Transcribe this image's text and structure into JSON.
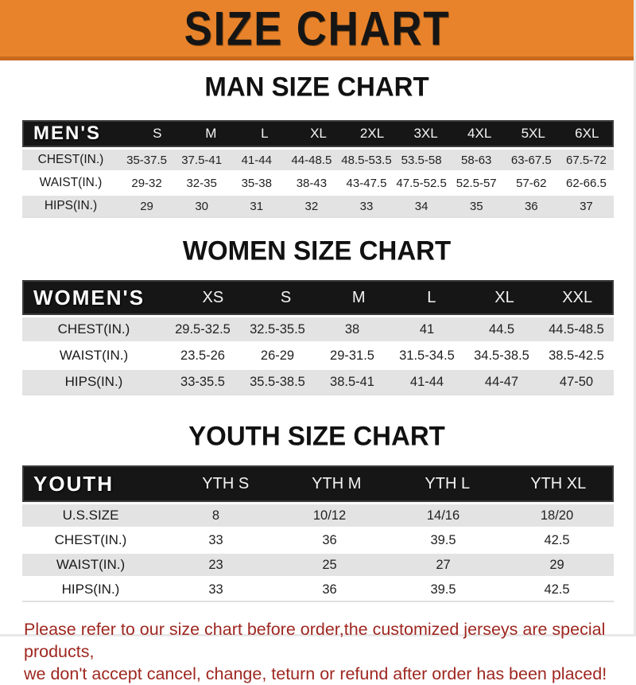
{
  "banner": {
    "title": "SIZE CHART",
    "bg_color": "#e8832b",
    "text_color": "#151515"
  },
  "sections": [
    {
      "heading": "MAN SIZE CHART",
      "header": [
        "MEN'S",
        "S",
        "M",
        "L",
        "XL",
        "2XL",
        "3XL",
        "4XL",
        "5XL",
        "6XL"
      ],
      "rows": [
        {
          "label": "CHEST(IN.)",
          "shaded": true,
          "values": [
            "35-37.5",
            "37.5-41",
            "41-44",
            "44-48.5",
            "48.5-53.5",
            "53.5-58",
            "58-63",
            "63-67.5",
            "67.5-72"
          ]
        },
        {
          "label": "WAIST(IN.)",
          "shaded": false,
          "values": [
            "29-32",
            "32-35",
            "35-38",
            "38-43",
            "43-47.5",
            "47.5-52.5",
            "52.5-57",
            "57-62",
            "62-66.5"
          ]
        },
        {
          "label": "HIPS(IN.)",
          "shaded": true,
          "values": [
            "29",
            "30",
            "31",
            "32",
            "33",
            "34",
            "35",
            "36",
            "37"
          ]
        }
      ]
    },
    {
      "heading": "WOMEN SIZE CHART",
      "header": [
        "WOMEN'S",
        "XS",
        "S",
        "M",
        "L",
        "XL",
        "XXL"
      ],
      "rows": [
        {
          "label": "CHEST(IN.)",
          "shaded": true,
          "values": [
            "29.5-32.5",
            "32.5-35.5",
            "38",
            "41",
            "44.5",
            "44.5-48.5"
          ]
        },
        {
          "label": "WAIST(IN.)",
          "shaded": false,
          "values": [
            "23.5-26",
            "26-29",
            "29-31.5",
            "31.5-34.5",
            "34.5-38.5",
            "38.5-42.5"
          ]
        },
        {
          "label": "HIPS(IN.)",
          "shaded": true,
          "values": [
            "33-35.5",
            "35.5-38.5",
            "38.5-41",
            "41-44",
            "44-47",
            "47-50"
          ]
        }
      ]
    },
    {
      "heading": "YOUTH SIZE CHART",
      "header": [
        "YOUTH",
        "YTH S",
        "YTH M",
        "YTH L",
        "YTH XL"
      ],
      "rows": [
        {
          "label": "U.S.SIZE",
          "shaded": true,
          "values": [
            "8",
            "10/12",
            "14/16",
            "18/20"
          ]
        },
        {
          "label": "CHEST(IN.)",
          "shaded": false,
          "values": [
            "33",
            "36",
            "39.5",
            "42.5"
          ]
        },
        {
          "label": "WAIST(IN.)",
          "shaded": true,
          "values": [
            "23",
            "25",
            "27",
            "29"
          ]
        },
        {
          "label": "HIPS(IN.)",
          "shaded": false,
          "values": [
            "33",
            "36",
            "39.5",
            "42.5"
          ]
        }
      ]
    }
  ],
  "footer": {
    "line1": "Please refer to our size chart before order,the customized jerseys are special products,",
    "line2": "we don't accept cancel, change, teturn or refund after order has been placed!",
    "text_color": "#9e2720"
  },
  "colors": {
    "header_bar": "#161616",
    "shaded_row": "#e3e3e3",
    "banner_orange": "#e8832b",
    "banner_border": "#c8691d"
  }
}
